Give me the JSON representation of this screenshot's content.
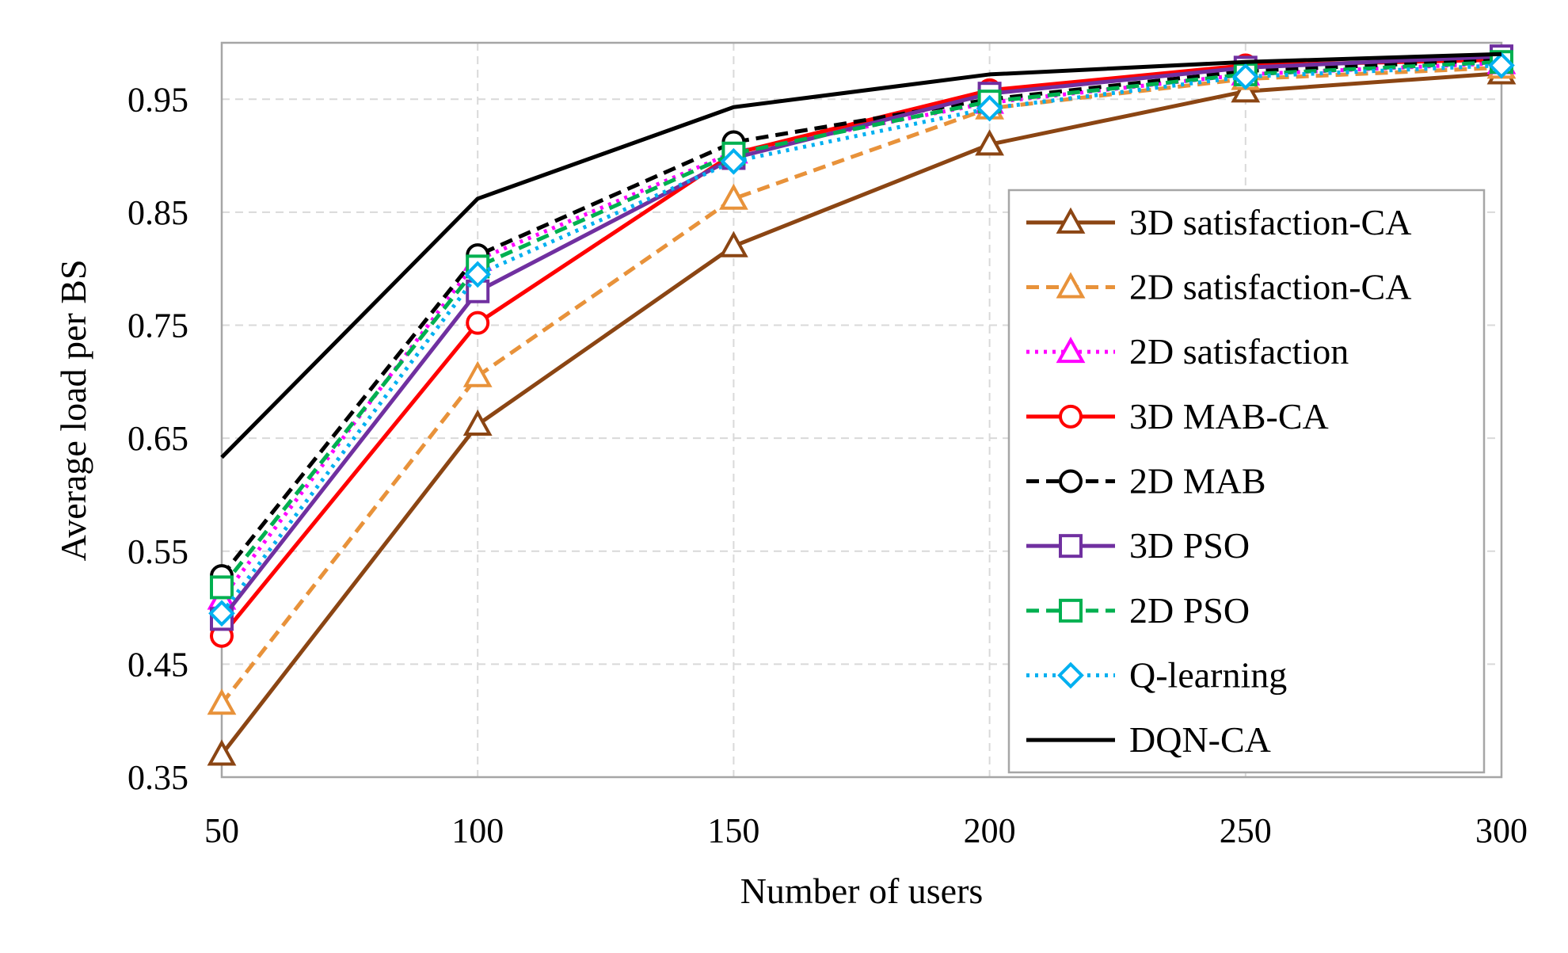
{
  "chart_data": {
    "type": "line",
    "title": "",
    "xlabel": "Number of users",
    "ylabel": "Average load per BS",
    "x": [
      50,
      100,
      150,
      200,
      250,
      300
    ],
    "x_tick_labels": [
      "50",
      "100",
      "150",
      "200",
      "250",
      "300"
    ],
    "y_tick_labels": [
      "0.35",
      "0.45",
      "0.55",
      "0.65",
      "0.75",
      "0.85",
      "0.95"
    ],
    "y_ticks": [
      0.35,
      0.45,
      0.55,
      0.65,
      0.75,
      0.85,
      0.95
    ],
    "xlim": [
      50,
      300
    ],
    "ylim": [
      0.35,
      1.0
    ],
    "grid": true,
    "legend_position": "bottom-right",
    "series": [
      {
        "name": "3D satisfaction-CA",
        "values": [
          0.37,
          0.662,
          0.82,
          0.91,
          0.957,
          0.973
        ],
        "color": "#8B4513",
        "dash": "solid",
        "marker": "triangle"
      },
      {
        "name": "2D satisfaction-CA",
        "values": [
          0.415,
          0.705,
          0.862,
          0.942,
          0.968,
          0.978
        ],
        "color": "#E8923A",
        "dash": "dashed",
        "marker": "triangle"
      },
      {
        "name": "2D satisfaction",
        "values": [
          0.508,
          0.808,
          0.903,
          0.947,
          0.972,
          0.982
        ],
        "color": "#FF00FF",
        "dash": "dotted",
        "marker": "triangle"
      },
      {
        "name": "3D MAB-CA",
        "values": [
          0.475,
          0.752,
          0.902,
          0.958,
          0.98,
          0.985
        ],
        "color": "#FF0000",
        "dash": "solid",
        "marker": "circle"
      },
      {
        "name": "2D MAB",
        "values": [
          0.528,
          0.812,
          0.912,
          0.95,
          0.975,
          0.985
        ],
        "color": "#000000",
        "dash": "dashed",
        "marker": "circle"
      },
      {
        "name": "3D PSO",
        "values": [
          0.49,
          0.78,
          0.898,
          0.955,
          0.978,
          0.988
        ],
        "color": "#7030A0",
        "dash": "solid",
        "marker": "square"
      },
      {
        "name": "2D PSO",
        "values": [
          0.518,
          0.802,
          0.902,
          0.948,
          0.972,
          0.983
        ],
        "color": "#00B050",
        "dash": "dashed",
        "marker": "square"
      },
      {
        "name": "Q-learning",
        "values": [
          0.495,
          0.795,
          0.895,
          0.942,
          0.97,
          0.98
        ],
        "color": "#00B0F0",
        "dash": "dotted",
        "marker": "diamond"
      },
      {
        "name": "DQN-CA",
        "values": [
          0.633,
          0.862,
          0.943,
          0.972,
          0.983,
          0.99
        ],
        "color": "#000000",
        "dash": "solid",
        "marker": "none"
      }
    ]
  }
}
